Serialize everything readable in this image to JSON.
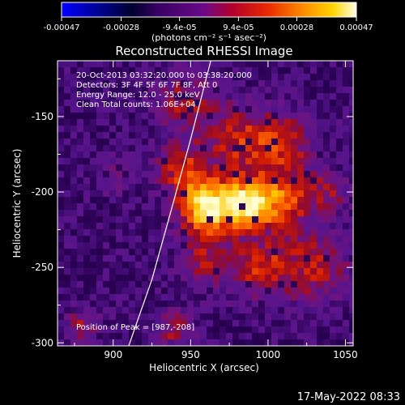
{
  "colorbar": {
    "ticks": [
      "-0.00047",
      "-0.00028",
      "-9.4e-05",
      "9.4e-05",
      "0.00028",
      "0.00047"
    ],
    "tick_values": [
      -0.00047,
      -0.00028,
      -9.4e-05,
      9.4e-05,
      0.00028,
      0.00047
    ],
    "range": [
      -0.00047,
      0.00047
    ],
    "unit_label": "(photons cm⁻² s⁻¹ asec⁻²)"
  },
  "timestamp": "17-May-2022 08:33",
  "chart_data": {
    "type": "heatmap",
    "title": "Reconstructed RHESSI Image",
    "xlabel": "Heliocentric X (arcsec)",
    "ylabel": "Heliocentric Y (arcsec)",
    "xlim": [
      864,
      1055
    ],
    "ylim": [
      -302,
      -113
    ],
    "x_ticks": [
      900,
      950,
      1000,
      1050
    ],
    "y_ticks": [
      -150,
      -200,
      -250,
      -300
    ],
    "annotations": [
      "20-Oct-2013 03:32:20.000 to 03:38:20.000",
      "Detectors: 3F 4F 5F 6F 7F 8F, Att 0",
      "Energy Range: 12.0 - 25.0 keV",
      "Clean     Total counts: 1.06E+04"
    ],
    "peak_label": "Position of Peak = [987,-208]",
    "peak": {
      "x": 987,
      "y": -208
    },
    "limb_curve": [
      [
        910,
        -302
      ],
      [
        925,
        -258
      ],
      [
        938,
        -210
      ],
      [
        950,
        -165
      ],
      [
        963,
        -113
      ]
    ],
    "sources": [
      {
        "x": 960,
        "y": -210,
        "amp": 1.0,
        "sigma": 12
      },
      {
        "x": 986,
        "y": -208,
        "amp": 0.95,
        "sigma": 11
      },
      {
        "x": 1010,
        "y": -205,
        "amp": 0.55,
        "sigma": 14
      },
      {
        "x": 980,
        "y": -165,
        "amp": 0.45,
        "sigma": 16
      },
      {
        "x": 1010,
        "y": -168,
        "amp": 0.4,
        "sigma": 14
      },
      {
        "x": 1030,
        "y": -250,
        "amp": 0.4,
        "sigma": 16
      },
      {
        "x": 995,
        "y": -250,
        "amp": 0.45,
        "sigma": 14
      },
      {
        "x": 960,
        "y": -245,
        "amp": 0.35,
        "sigma": 12
      },
      {
        "x": 945,
        "y": -185,
        "amp": 0.45,
        "sigma": 12
      },
      {
        "x": 945,
        "y": -140,
        "amp": 0.35,
        "sigma": 14
      },
      {
        "x": 900,
        "y": -190,
        "amp": 0.25,
        "sigma": 8
      },
      {
        "x": 880,
        "y": -290,
        "amp": 0.35,
        "sigma": 8
      },
      {
        "x": 940,
        "y": -290,
        "amp": 0.4,
        "sigma": 8
      },
      {
        "x": 1040,
        "y": -200,
        "amp": 0.3,
        "sigma": 10
      }
    ]
  }
}
